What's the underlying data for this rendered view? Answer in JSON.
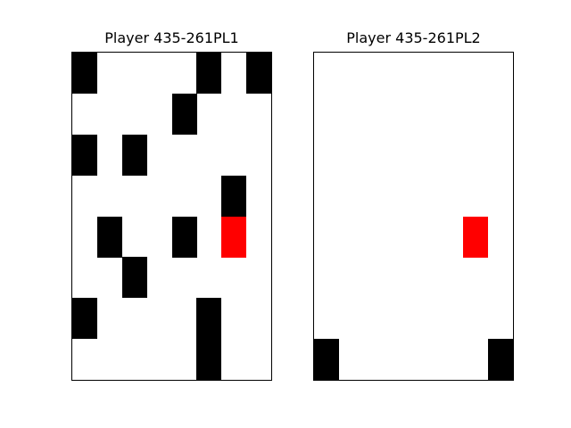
{
  "colors": {
    "background": "#ffffff",
    "filled": "#000000",
    "highlight": "#ff0000"
  },
  "boards": [
    {
      "title": "Player 435-261PL1",
      "rows": 8,
      "cols": 8,
      "cells": [
        [
          0,
          0,
          "filled"
        ],
        [
          0,
          5,
          "filled"
        ],
        [
          0,
          7,
          "filled"
        ],
        [
          1,
          4,
          "filled"
        ],
        [
          2,
          0,
          "filled"
        ],
        [
          2,
          2,
          "filled"
        ],
        [
          3,
          6,
          "filled"
        ],
        [
          4,
          1,
          "filled"
        ],
        [
          4,
          4,
          "filled"
        ],
        [
          4,
          6,
          "highlight"
        ],
        [
          5,
          2,
          "filled"
        ],
        [
          6,
          0,
          "filled"
        ],
        [
          6,
          5,
          "filled"
        ],
        [
          7,
          5,
          "filled"
        ]
      ]
    },
    {
      "title": "Player 435-261PL2",
      "rows": 8,
      "cols": 8,
      "cells": [
        [
          4,
          6,
          "highlight"
        ],
        [
          7,
          0,
          "filled"
        ],
        [
          7,
          7,
          "filled"
        ]
      ]
    }
  ]
}
